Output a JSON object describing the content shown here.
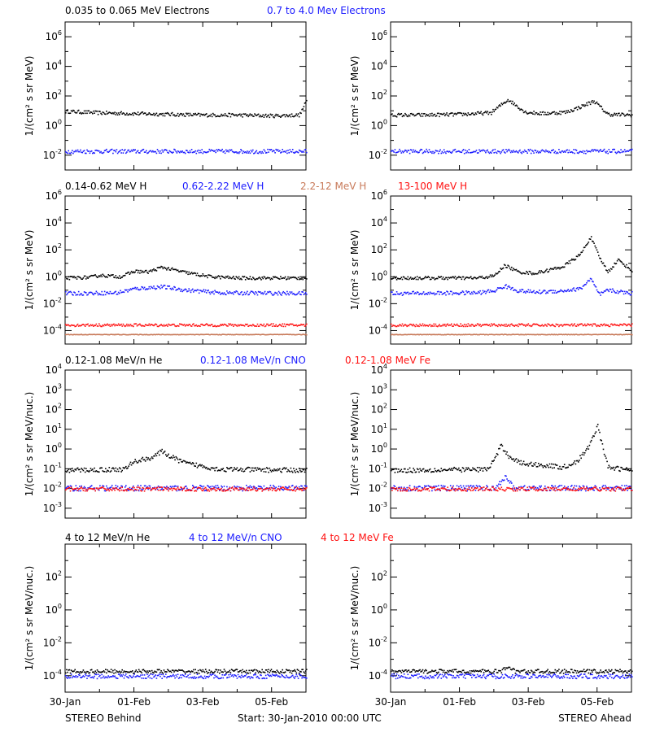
{
  "colors": {
    "black": "#000000",
    "blue": "#1c1cff",
    "tan": "#c87a5a",
    "red": "#ff1111"
  },
  "panel_rows": [
    {
      "legend": [
        {
          "text": "0.035 to 0.065 MeV Electrons",
          "color": "black"
        },
        {
          "text": "0.7 to 4.0 Mev Electrons",
          "color": "blue"
        }
      ],
      "ylabel": "1/(cm² s sr MeV)"
    },
    {
      "legend": [
        {
          "text": "0.14-0.62 MeV H",
          "color": "black"
        },
        {
          "text": "0.62-2.22 MeV H",
          "color": "blue"
        },
        {
          "text": "2.2-12 MeV H",
          "color": "tan"
        },
        {
          "text": "13-100 MeV H",
          "color": "red"
        }
      ],
      "ylabel": "1/(cm² s sr MeV)"
    },
    {
      "legend": [
        {
          "text": "0.12-1.08 MeV/n He",
          "color": "black"
        },
        {
          "text": "0.12-1.08 MeV/n CNO",
          "color": "blue"
        },
        {
          "text": "0.12-1.08 MeV Fe",
          "color": "red"
        }
      ],
      "ylabel": "1/(cm² s sr MeV/nuc.)"
    },
    {
      "legend": [
        {
          "text": "4 to 12 MeV/n He",
          "color": "black"
        },
        {
          "text": "4 to 12 MeV/n CNO",
          "color": "blue"
        },
        {
          "text": "4 to 12 MeV Fe",
          "color": "red"
        }
      ],
      "ylabel": "1/(cm² s sr MeV/nuc.)"
    }
  ],
  "footer": {
    "left": "STEREO Behind",
    "center": "Start: 30-Jan-2010 00:00 UTC",
    "right": "STEREO Ahead"
  },
  "chart_data": [
    {
      "type": "scatter",
      "panel": "Behind electrons",
      "yscale": "log",
      "ylim_exp": [
        -3,
        7
      ],
      "ytick_exp": [
        -2,
        0,
        2,
        4,
        6
      ],
      "xlim_days": [
        0,
        7
      ],
      "xtick_labels": [
        "30-Jan",
        "01-Feb",
        "03-Feb",
        "05-Feb"
      ],
      "series": [
        {
          "name": "0.035 to 0.065 MeV Electrons",
          "color": "black",
          "x": [
            0,
            1,
            2,
            3,
            4,
            5,
            6,
            6.8,
            7
          ],
          "y_exp": [
            1.0,
            0.9,
            0.85,
            0.8,
            0.75,
            0.75,
            0.7,
            0.75,
            1.7
          ]
        },
        {
          "name": "0.7 to 4.0 Mev Electrons",
          "color": "blue",
          "x": [
            0,
            7
          ],
          "y_exp": [
            -1.7,
            -1.7
          ]
        }
      ]
    },
    {
      "type": "scatter",
      "panel": "Ahead electrons",
      "yscale": "log",
      "ylim_exp": [
        -3,
        7
      ],
      "ytick_exp": [
        -2,
        0,
        2,
        4,
        6
      ],
      "xlim_days": [
        0,
        7
      ],
      "xtick_labels": [
        "30-Jan",
        "01-Feb",
        "03-Feb",
        "05-Feb"
      ],
      "series": [
        {
          "name": "0.035 to 0.065 MeV Electrons",
          "color": "black",
          "x": [
            0,
            1,
            2,
            2.9,
            3.4,
            3.9,
            4.4,
            5.1,
            5.5,
            5.9,
            6.3,
            7
          ],
          "y_exp": [
            0.75,
            0.75,
            0.8,
            0.9,
            1.8,
            0.95,
            0.85,
            0.95,
            1.3,
            1.7,
            0.8,
            0.75
          ]
        },
        {
          "name": "0.7 to 4.0 Mev Electrons",
          "color": "blue",
          "x": [
            0,
            7
          ],
          "y_exp": [
            -1.7,
            -1.7
          ]
        }
      ]
    },
    {
      "type": "scatter",
      "panel": "Behind protons",
      "yscale": "log",
      "ylim_exp": [
        -5,
        6
      ],
      "ytick_exp": [
        -4,
        -2,
        0,
        2,
        4,
        6
      ],
      "xlim_days": [
        0,
        7
      ],
      "xtick_labels": [
        "30-Jan",
        "01-Feb",
        "03-Feb",
        "05-Feb"
      ],
      "series": [
        {
          "name": "0.14-0.62 MeV H",
          "color": "black",
          "x": [
            0,
            0.7,
            1.0,
            1.6,
            2.0,
            2.4,
            2.8,
            3.5,
            4.2,
            5.0,
            7
          ],
          "y_exp": [
            -0.05,
            0.0,
            0.15,
            0.05,
            0.45,
            0.4,
            0.75,
            0.35,
            0.05,
            -0.05,
            -0.05
          ]
        },
        {
          "name": "0.62-2.22 MeV H",
          "color": "blue",
          "x": [
            0,
            1.5,
            2.0,
            2.8,
            3.5,
            4.5,
            7
          ],
          "y_exp": [
            -1.2,
            -1.15,
            -0.85,
            -0.7,
            -0.95,
            -1.15,
            -1.2
          ]
        },
        {
          "name": "2.2-12 MeV H",
          "color": "tan",
          "x": [
            0,
            7
          ],
          "y_exp": [
            -4.25,
            -4.25
          ]
        },
        {
          "name": "13-100 MeV H",
          "color": "red",
          "x": [
            0,
            7
          ],
          "y_exp": [
            -3.55,
            -3.55
          ]
        }
      ]
    },
    {
      "type": "scatter",
      "panel": "Ahead protons",
      "yscale": "log",
      "ylim_exp": [
        -5,
        6
      ],
      "ytick_exp": [
        -4,
        -2,
        0,
        2,
        4,
        6
      ],
      "xlim_days": [
        0,
        7
      ],
      "xtick_labels": [
        "30-Jan",
        "01-Feb",
        "03-Feb",
        "05-Feb"
      ],
      "series": [
        {
          "name": "0.14-0.62 MeV H",
          "color": "black",
          "x": [
            0,
            2.5,
            3.0,
            3.3,
            3.7,
            4.2,
            5.0,
            5.5,
            5.8,
            6.05,
            6.3,
            6.6,
            7
          ],
          "y_exp": [
            -0.05,
            -0.05,
            0.1,
            0.9,
            0.4,
            0.3,
            0.8,
            1.7,
            3.0,
            1.5,
            0.4,
            1.3,
            0.5
          ]
        },
        {
          "name": "0.62-2.22 MeV H",
          "color": "blue",
          "x": [
            0,
            2.5,
            3.0,
            3.3,
            3.7,
            4.2,
            5.0,
            5.5,
            5.8,
            6.05,
            6.3,
            7
          ],
          "y_exp": [
            -1.2,
            -1.15,
            -1.0,
            -0.65,
            -1.0,
            -1.1,
            -1.0,
            -0.85,
            -0.1,
            -1.3,
            -0.95,
            -1.2
          ]
        },
        {
          "name": "2.2-12 MeV H",
          "color": "tan",
          "x": [
            0,
            7
          ],
          "y_exp": [
            -4.25,
            -4.25
          ]
        },
        {
          "name": "13-100 MeV H",
          "color": "red",
          "x": [
            0,
            7
          ],
          "y_exp": [
            -3.55,
            -3.55
          ]
        }
      ]
    },
    {
      "type": "scatter",
      "panel": "Behind heavy ions",
      "yscale": "log",
      "ylim_exp": [
        -3.5,
        4
      ],
      "ytick_exp": [
        -3,
        -2,
        -1,
        0,
        1,
        2,
        3,
        4
      ],
      "xlim_days": [
        0,
        7
      ],
      "xtick_labels": [
        "30-Jan",
        "01-Feb",
        "03-Feb",
        "05-Feb"
      ],
      "series": [
        {
          "name": "0.12-1.08 MeV/n He",
          "color": "black",
          "x": [
            0,
            1.7,
            2.0,
            2.5,
            2.8,
            3.1,
            3.5,
            4.5,
            7
          ],
          "y_exp": [
            -1.05,
            -1.0,
            -0.6,
            -0.4,
            -0.1,
            -0.4,
            -0.7,
            -1.0,
            -1.05
          ]
        },
        {
          "name": "0.12-1.08 MeV/n CNO",
          "color": "blue",
          "x": [
            0,
            7
          ],
          "y_exp": [
            -1.95,
            -1.95
          ]
        },
        {
          "name": "0.12-1.08 MeV Fe",
          "color": "red",
          "x": [
            0,
            7
          ],
          "y_exp": [
            -2.0,
            -2.0
          ]
        }
      ]
    },
    {
      "type": "scatter",
      "panel": "Ahead heavy ions",
      "yscale": "log",
      "ylim_exp": [
        -3.5,
        4
      ],
      "ytick_exp": [
        -3,
        -2,
        -1,
        0,
        1,
        2,
        3,
        4
      ],
      "xlim_days": [
        0,
        7
      ],
      "xtick_labels": [
        "30-Jan",
        "01-Feb",
        "03-Feb",
        "05-Feb"
      ],
      "series": [
        {
          "name": "0.12-1.08 MeV/n He",
          "color": "black",
          "x": [
            0,
            2.8,
            3.0,
            3.2,
            3.4,
            3.8,
            4.5,
            5.0,
            5.4,
            5.7,
            5.85,
            6.0,
            6.3,
            7
          ],
          "y_exp": [
            -1.05,
            -1.0,
            -0.5,
            0.2,
            -0.3,
            -0.7,
            -0.8,
            -0.9,
            -0.6,
            0.0,
            0.6,
            1.2,
            -0.9,
            -1.05
          ]
        },
        {
          "name": "0.12-1.08 MeV/n CNO",
          "color": "blue",
          "x": [
            0,
            3.0,
            3.3,
            3.6,
            7
          ],
          "y_exp": [
            -1.95,
            -1.95,
            -1.4,
            -1.95,
            -1.95
          ]
        },
        {
          "name": "0.12-1.08 MeV Fe",
          "color": "red",
          "x": [
            0,
            7
          ],
          "y_exp": [
            -2.0,
            -2.0
          ]
        }
      ]
    },
    {
      "type": "scatter",
      "panel": "Behind high-energy ions",
      "yscale": "log",
      "ylim_exp": [
        -5,
        4
      ],
      "ytick_exp": [
        -4,
        -2,
        0,
        2
      ],
      "xlim_days": [
        0,
        7
      ],
      "xtick_labels": [
        "30-Jan",
        "01-Feb",
        "03-Feb",
        "05-Feb"
      ],
      "series": [
        {
          "name": "4 to 12 MeV/n He",
          "color": "black",
          "x": [
            0,
            7
          ],
          "y_exp": [
            -3.7,
            -3.7
          ]
        },
        {
          "name": "4 to 12 MeV/n CNO",
          "color": "blue",
          "x": [
            0,
            7
          ],
          "y_exp": [
            -4.0,
            -4.0
          ]
        }
      ]
    },
    {
      "type": "scatter",
      "panel": "Ahead high-energy ions",
      "yscale": "log",
      "ylim_exp": [
        -5,
        4
      ],
      "ytick_exp": [
        -4,
        -2,
        0,
        2
      ],
      "xlim_days": [
        0,
        7
      ],
      "xtick_labels": [
        "30-Jan",
        "01-Feb",
        "03-Feb",
        "05-Feb"
      ],
      "series": [
        {
          "name": "4 to 12 MeV/n He",
          "color": "black",
          "x": [
            0,
            3.2,
            3.4,
            3.6,
            7
          ],
          "y_exp": [
            -3.7,
            -3.7,
            -3.4,
            -3.7,
            -3.7
          ]
        },
        {
          "name": "4 to 12 MeV/n CNO",
          "color": "blue",
          "x": [
            0,
            7
          ],
          "y_exp": [
            -4.0,
            -4.0
          ]
        }
      ]
    }
  ]
}
